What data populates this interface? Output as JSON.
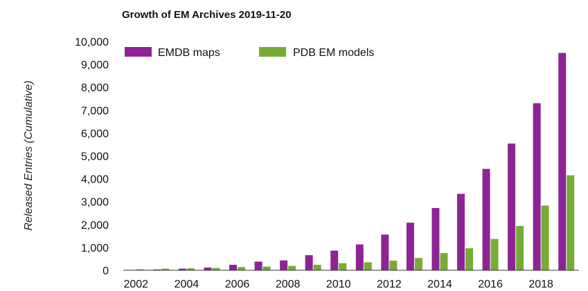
{
  "chart_data": {
    "type": "bar",
    "title": "Growth of EM Archives 2019-11-20",
    "xlabel": "",
    "ylabel": "Released Entries (Cumulative)",
    "categories": [
      "2002",
      "2003",
      "2004",
      "2005",
      "2006",
      "2007",
      "2008",
      "2009",
      "2010",
      "2011",
      "2012",
      "2013",
      "2014",
      "2015",
      "2016",
      "2017",
      "2018",
      "2019"
    ],
    "x_tick_labels": [
      "2002",
      "2004",
      "2006",
      "2008",
      "2010",
      "2012",
      "2014",
      "2016",
      "2018"
    ],
    "y_tick_labels": [
      "0",
      "1,000",
      "2,000",
      "3,000",
      "4,000",
      "5,000",
      "6,000",
      "7,000",
      "8,000",
      "9,000",
      "10,000"
    ],
    "ylim": [
      0,
      10000
    ],
    "grid": false,
    "legend_position": "top-left",
    "series": [
      {
        "name": "EMDB maps",
        "color": "#8e2395",
        "values": [
          15,
          35,
          70,
          120,
          240,
          380,
          430,
          660,
          860,
          1130,
          1560,
          2080,
          2720,
          3340,
          4430,
          5540,
          7300,
          9500
        ]
      },
      {
        "name": "PDB EM models",
        "color": "#76ac35",
        "values": [
          45,
          70,
          85,
          100,
          140,
          160,
          190,
          240,
          310,
          350,
          420,
          540,
          750,
          960,
          1370,
          1940,
          2830,
          4150
        ]
      }
    ]
  }
}
